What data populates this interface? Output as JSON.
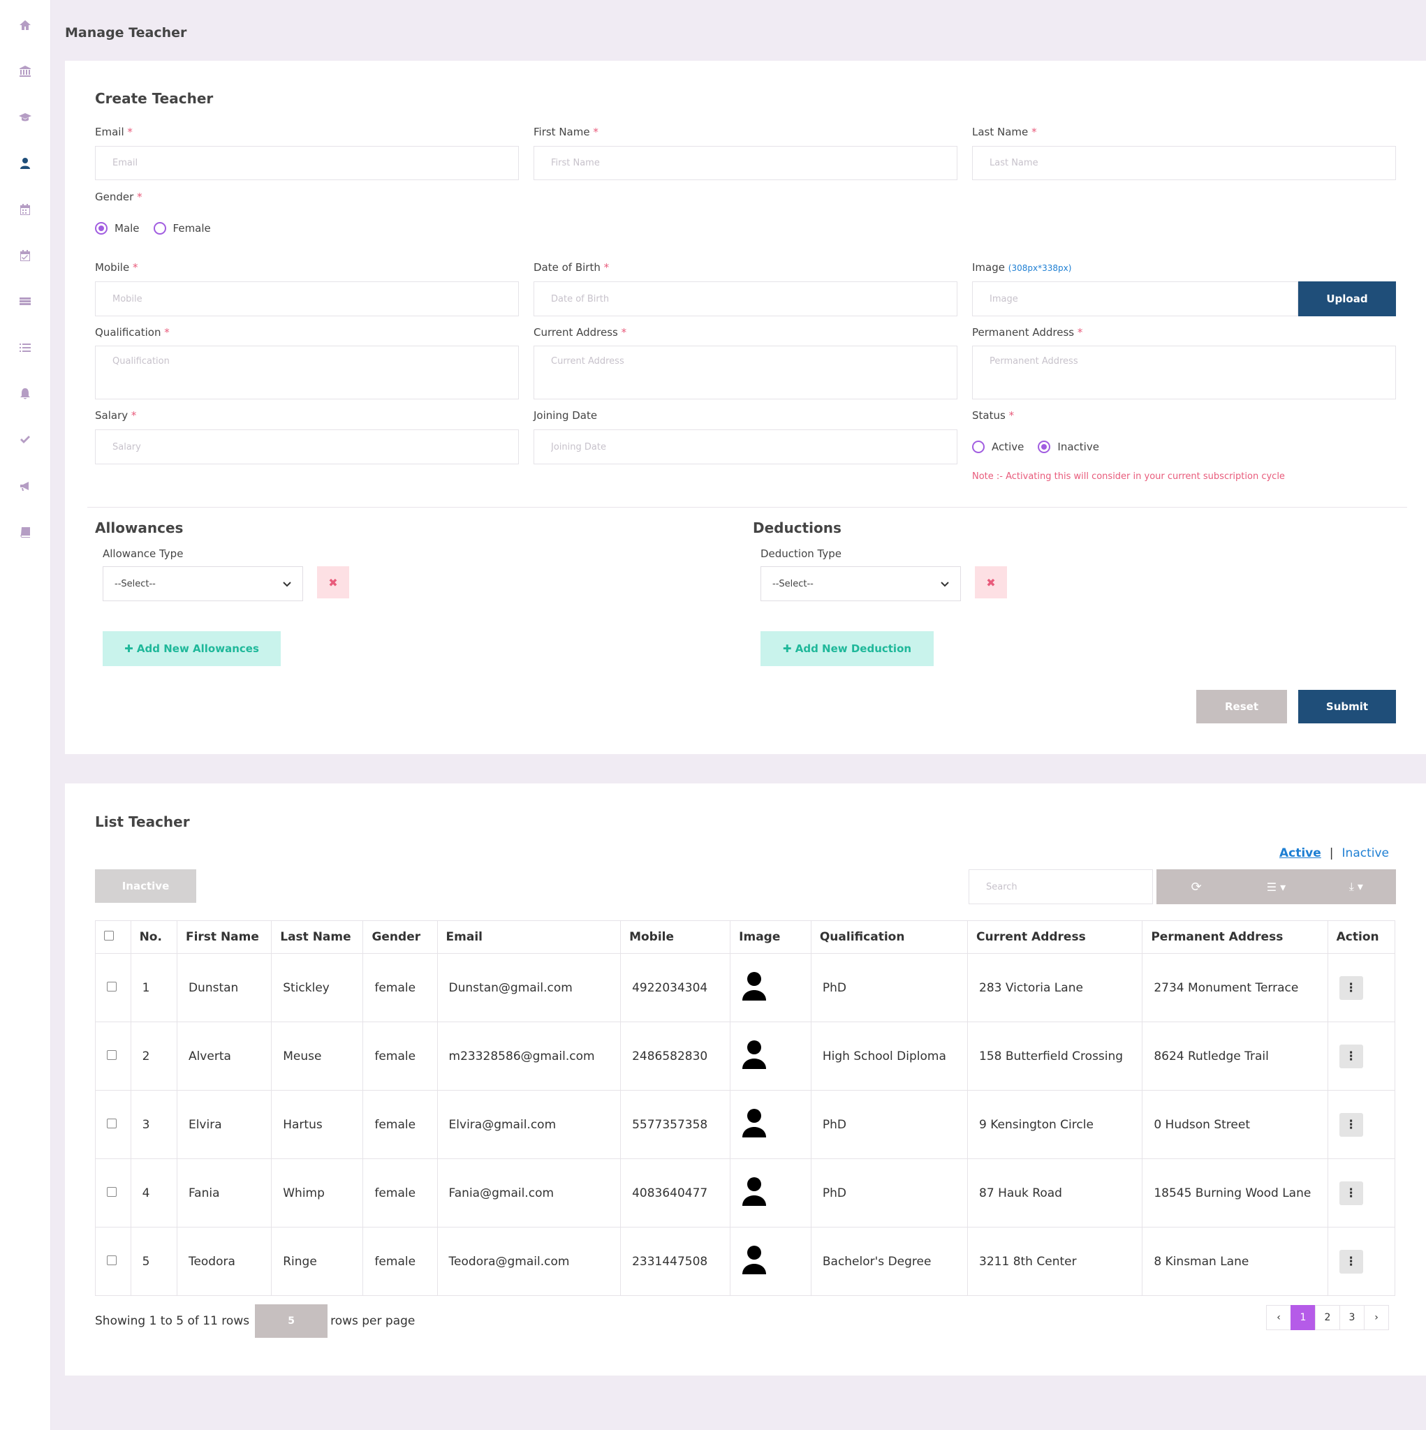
{
  "page_title": "Manage Teacher",
  "sidebar": {
    "items": [
      {
        "icon": "home-icon"
      },
      {
        "icon": "bank-icon"
      },
      {
        "icon": "graduation-cap-icon"
      },
      {
        "icon": "user-icon",
        "active": true
      },
      {
        "icon": "calendar-icon"
      },
      {
        "icon": "calendar-check-icon"
      },
      {
        "icon": "table-icon"
      },
      {
        "icon": "list-icon"
      },
      {
        "icon": "bell-icon"
      },
      {
        "icon": "check-icon"
      },
      {
        "icon": "bullhorn-icon"
      },
      {
        "icon": "book-icon"
      }
    ]
  },
  "create": {
    "title": "Create Teacher",
    "email": {
      "label": "Email",
      "placeholder": "Email"
    },
    "first_name": {
      "label": "First Name",
      "placeholder": "First Name"
    },
    "last_name": {
      "label": "Last Name",
      "placeholder": "Last Name"
    },
    "gender": {
      "label": "Gender",
      "options": [
        "Male",
        "Female"
      ],
      "selected": "Male"
    },
    "mobile": {
      "label": "Mobile",
      "placeholder": "Mobile"
    },
    "dob": {
      "label": "Date of Birth",
      "placeholder": "Date of Birth"
    },
    "image": {
      "label": "Image",
      "hint": "(308px*338px)",
      "placeholder": "Image",
      "button": "Upload"
    },
    "qualification": {
      "label": "Qualification",
      "placeholder": "Qualification"
    },
    "current_address": {
      "label": "Current Address",
      "placeholder": "Current Address"
    },
    "permanent_address": {
      "label": "Permanent Address",
      "placeholder": "Permanent Address"
    },
    "salary": {
      "label": "Salary",
      "placeholder": "Salary"
    },
    "joining_date": {
      "label": "Joining Date",
      "placeholder": "Joining Date"
    },
    "status": {
      "label": "Status",
      "options": [
        "Active",
        "Inactive"
      ],
      "selected": "Inactive",
      "note": "Note :- Activating this will consider in your current subscription cycle"
    },
    "allowances": {
      "title": "Allowances",
      "type_label": "Allowance Type",
      "select_value": "--Select--",
      "add_button": "Add New Allowances"
    },
    "deductions": {
      "title": "Deductions",
      "type_label": "Deduction Type",
      "select_value": "--Select--",
      "add_button": "Add New Deduction"
    },
    "reset_button": "Reset",
    "submit_button": "Submit"
  },
  "list": {
    "title": "List Teacher",
    "tabs": {
      "active": "Active",
      "separator": "|",
      "inactive": "Inactive"
    },
    "bulk_button": "Inactive",
    "search_placeholder": "Search",
    "columns": [
      "No.",
      "First Name",
      "Last Name",
      "Gender",
      "Email",
      "Mobile",
      "Image",
      "Qualification",
      "Current Address",
      "Permanent Address",
      "Action"
    ],
    "rows": [
      {
        "no": "1",
        "first": "Dunstan",
        "last": "Stickley",
        "gender": "female",
        "email": "Dunstan@gmail.com",
        "mobile": "4922034304",
        "qualification": "PhD",
        "current": "283 Victoria Lane",
        "permanent": "2734 Monument Terrace"
      },
      {
        "no": "2",
        "first": "Alverta",
        "last": "Meuse",
        "gender": "female",
        "email": "m23328586@gmail.com",
        "mobile": "2486582830",
        "qualification": "High School Diploma",
        "current": "158 Butterfield Crossing",
        "permanent": "8624 Rutledge Trail"
      },
      {
        "no": "3",
        "first": "Elvira",
        "last": "Hartus",
        "gender": "female",
        "email": "Elvira@gmail.com",
        "mobile": "5577357358",
        "qualification": "PhD",
        "current": "9 Kensington Circle",
        "permanent": "0 Hudson Street"
      },
      {
        "no": "4",
        "first": "Fania",
        "last": "Whimp",
        "gender": "female",
        "email": "Fania@gmail.com",
        "mobile": "4083640477",
        "qualification": "PhD",
        "current": "87 Hauk Road",
        "permanent": "18545 Burning Wood Lane"
      },
      {
        "no": "5",
        "first": "Teodora",
        "last": "Ringe",
        "gender": "female",
        "email": "Teodora@gmail.com",
        "mobile": "2331447508",
        "qualification": "Bachelor's Degree",
        "current": "3211 8th Center",
        "permanent": "8 Kinsman Lane"
      }
    ],
    "footer": {
      "showing": "Showing 1 to 5 of 11 rows",
      "page_size": "5",
      "rows_per_page": "rows per page"
    },
    "pagination": {
      "prev": "‹",
      "pages": [
        "1",
        "2",
        "3"
      ],
      "current": "1",
      "next": "›"
    }
  },
  "colors": {
    "primary": "#1f4e79",
    "accent": "#a15de0",
    "mint": "#c9f3ec",
    "danger": "#e85b7b"
  }
}
